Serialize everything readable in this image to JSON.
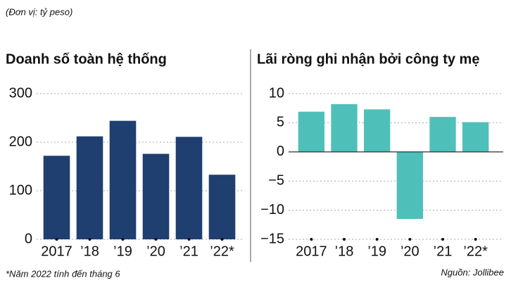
{
  "unit_note": "(Đơn vị: tỷ peso)",
  "footnote": "*Năm 2022 tính đến tháng 6",
  "source": "Nguồn: Jollibee",
  "chart_data": [
    {
      "type": "bar",
      "title": "Doanh số toàn hệ thống",
      "categories": [
        "2017",
        "’18",
        "’19",
        "’20",
        "’21",
        "’22*"
      ],
      "values": [
        172,
        212,
        244,
        176,
        211,
        133
      ],
      "color": "#1e3f6f",
      "ylim": [
        0,
        300
      ],
      "yticks": [
        0,
        100,
        200,
        300
      ],
      "grid": true
    },
    {
      "type": "bar",
      "title": "Lãi ròng ghi nhận bởi công ty mẹ",
      "categories": [
        "2017",
        "’18",
        "’19",
        "’20",
        "’21",
        "’22*"
      ],
      "values": [
        6.9,
        8.2,
        7.3,
        -11.5,
        6.0,
        5.1
      ],
      "color": "#4fc0b9",
      "ylim": [
        -15,
        10
      ],
      "yticks": [
        {
          "value": -15,
          "label": "−15"
        },
        {
          "value": -10,
          "label": "−10"
        },
        {
          "value": -5,
          "label": "−5"
        },
        0,
        5,
        10
      ],
      "grid": true
    }
  ]
}
